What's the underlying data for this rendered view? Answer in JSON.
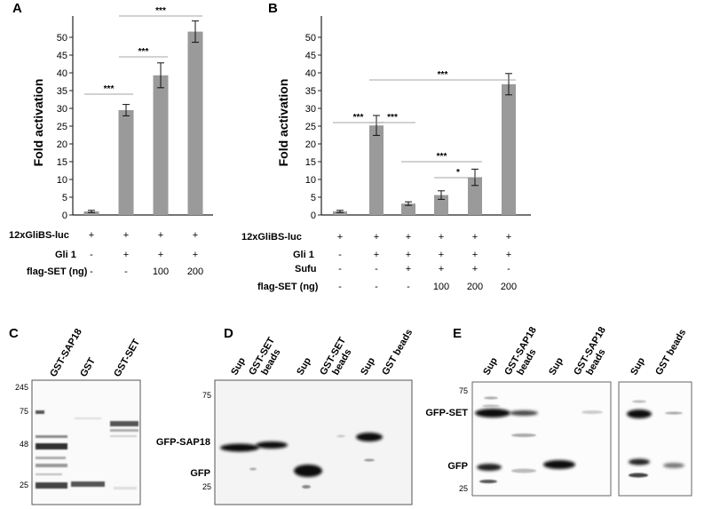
{
  "panels": {
    "A": "A",
    "B": "B",
    "C": "C",
    "D": "D",
    "E": "E"
  },
  "chart_data": [
    {
      "type": "bar",
      "panel": "A",
      "ylabel": "Fold activation",
      "ylim": [
        0,
        55
      ],
      "yticks": [
        "0",
        "5",
        "10",
        "15",
        "20",
        "25",
        "30",
        "35",
        "40",
        "45",
        "50"
      ],
      "values": [
        1.0,
        29.5,
        39.3,
        51.6
      ],
      "errors": [
        0.3,
        1.6,
        3.5,
        3.0
      ],
      "significance": [
        {
          "from": 0,
          "to": 1,
          "label": "***"
        },
        {
          "from": 1,
          "to": 2,
          "label": "***"
        },
        {
          "from": 1,
          "to": 3,
          "label": "***"
        }
      ],
      "conditions": [
        {
          "label": "12xGliBS-luc",
          "values": [
            "+",
            "+",
            "+",
            "+"
          ]
        },
        {
          "label": "Gli 1",
          "values": [
            "-",
            "+",
            "+",
            "+"
          ]
        },
        {
          "label": "flag-SET (ng)",
          "values": [
            "-",
            "-",
            "100",
            "200"
          ]
        }
      ]
    },
    {
      "type": "bar",
      "panel": "B",
      "ylabel": "Fold activation",
      "ylim": [
        0,
        55
      ],
      "yticks": [
        "0",
        "5",
        "10",
        "15",
        "20",
        "25",
        "30",
        "35",
        "40",
        "45",
        "50"
      ],
      "values": [
        1.0,
        25.2,
        3.2,
        5.6,
        10.6,
        36.8
      ],
      "errors": [
        0.3,
        2.8,
        0.5,
        1.2,
        2.3,
        3.0
      ],
      "significance": [
        {
          "from": 0,
          "to": 1,
          "label": "***"
        },
        {
          "from": 1,
          "to": 2,
          "label": "***"
        },
        {
          "from": 1,
          "to": 5,
          "label": "***"
        },
        {
          "from": 2,
          "to": 4,
          "label": "***"
        },
        {
          "from": 3,
          "to": 4,
          "label": "*"
        }
      ],
      "conditions": [
        {
          "label": "12xGliBS-luc",
          "values": [
            "+",
            "+",
            "+",
            "+",
            "+",
            "+"
          ]
        },
        {
          "label": "Gli 1",
          "values": [
            "-",
            "+",
            "+",
            "+",
            "+",
            "+"
          ]
        },
        {
          "label": "Sufu",
          "values": [
            "-",
            "-",
            "+",
            "+",
            "+",
            "-"
          ]
        },
        {
          "label": "flag-SET (ng)",
          "values": [
            "-",
            "-",
            "-",
            "100",
            "200",
            "200"
          ]
        }
      ]
    }
  ],
  "blots": {
    "C": {
      "lanes": [
        "GST-SAP18",
        "GST",
        "GST-SET"
      ],
      "markers": [
        "245",
        "75",
        "48",
        "25"
      ]
    },
    "D": {
      "lanes": [
        "Sup",
        "GST-SET\nbeads",
        "Sup",
        "GST-SET\nbeads",
        "Sup",
        "GST beads"
      ],
      "lane_line1": [
        "Sup",
        "GST-SET",
        "Sup",
        "GST-SET",
        "Sup",
        "GST beads"
      ],
      "lane_line2": [
        "",
        "beads",
        "",
        "beads",
        "",
        ""
      ],
      "markers": [
        "75",
        "25"
      ],
      "band_labels": [
        "GFP-SAP18",
        "GFP"
      ]
    },
    "E": {
      "lane_line1": [
        "Sup",
        "GST-SAP18",
        "Sup",
        "GST-SAP18",
        "Sup",
        "GST beads"
      ],
      "lane_line2": [
        "",
        "beads",
        "",
        "beads",
        "",
        ""
      ],
      "markers": [
        "75",
        "25"
      ],
      "band_labels": [
        "GFP-SET",
        "GFP"
      ]
    }
  },
  "colors": {
    "bar": "#9a9a9a",
    "axis": "#222222",
    "band": "#111111"
  }
}
